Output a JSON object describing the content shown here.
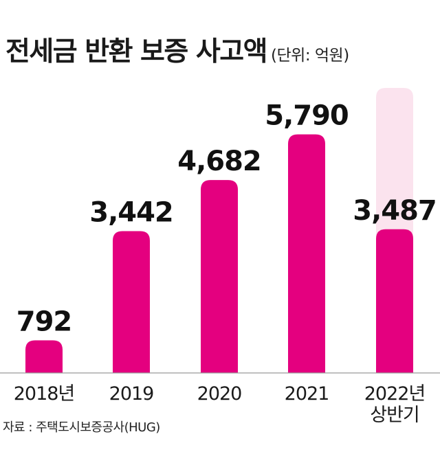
{
  "header": {
    "title": "전세금 반환 보증 사고액",
    "unit": "(단위: 억원)"
  },
  "source": "자료 : 주택도시보증공사(HUG)",
  "colors": {
    "bar": "#e4007f",
    "ghost_bar": "#fbe3ee",
    "baseline": "#999999"
  },
  "chart_data": {
    "type": "bar",
    "title": "전세금 반환 보증 사고액",
    "unit": "억원",
    "categories": [
      "2018년",
      "2019",
      "2020",
      "2021",
      "2022년 상반기"
    ],
    "category_lines": [
      [
        "2018년"
      ],
      [
        "2019"
      ],
      [
        "2020"
      ],
      [
        "2021"
      ],
      [
        "2022년",
        "상반기"
      ]
    ],
    "values": [
      792,
      3442,
      4682,
      5790,
      3487
    ],
    "value_labels": [
      "792",
      "3,442",
      "4,682",
      "5,790",
      "3,487"
    ],
    "ghost_bar_category": "2022년 상반기",
    "ylim": [
      0,
      7800
    ],
    "xlabel": "",
    "ylabel": ""
  }
}
